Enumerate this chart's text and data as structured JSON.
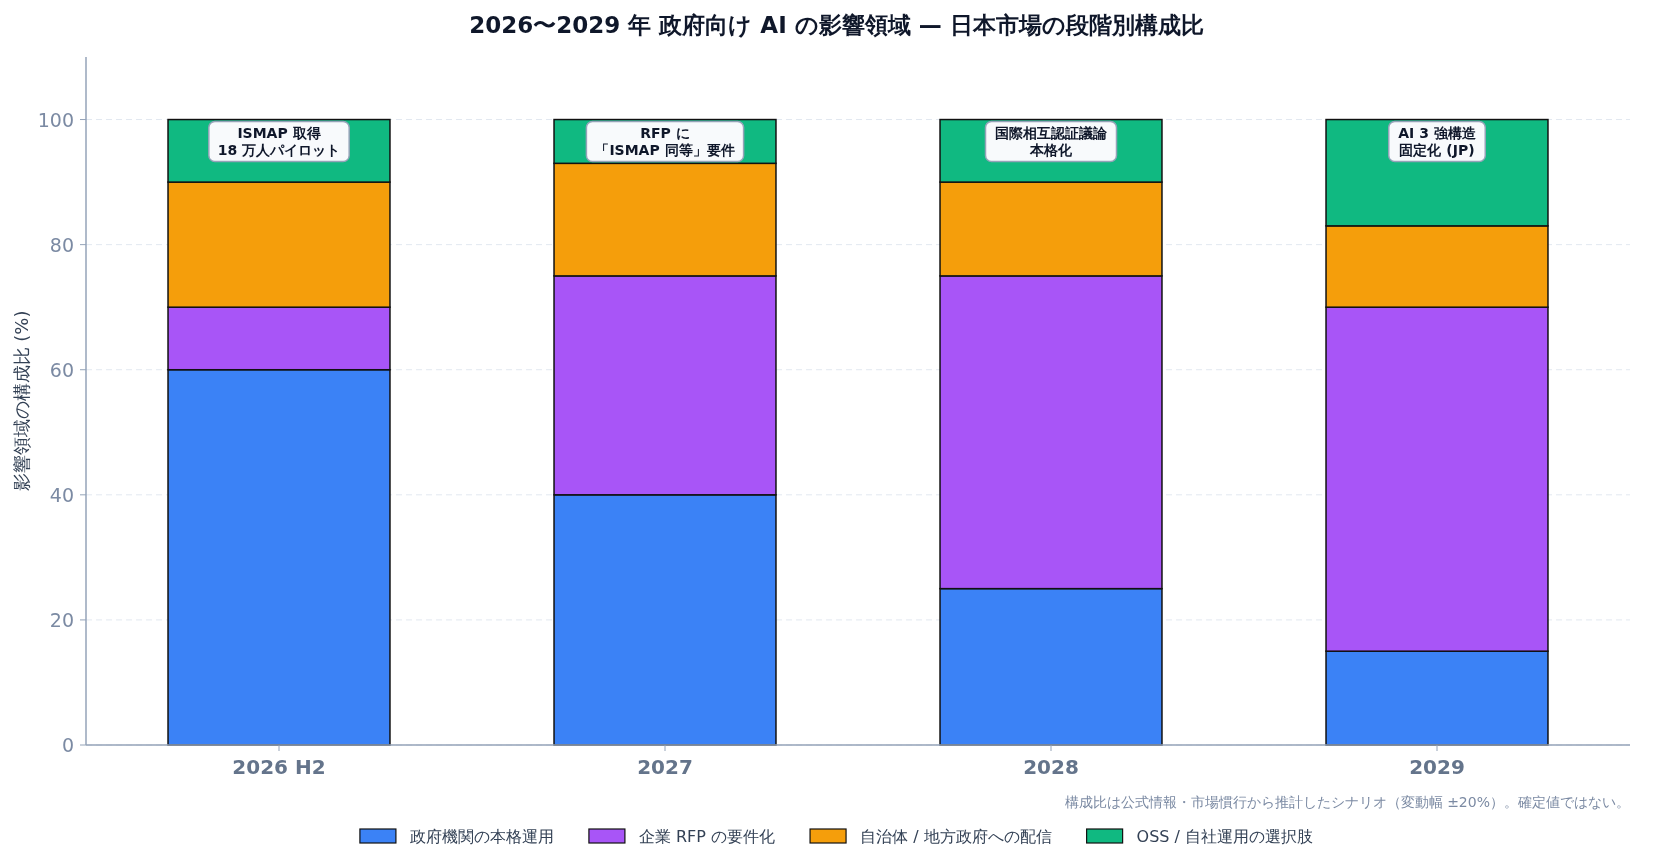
{
  "chart_data": {
    "type": "bar",
    "stacked": true,
    "title": "2026〜2029 年 政府向け AI の影響領域 — 日本市場の段階別構成比",
    "ylabel": "影響領域の構成比 (%)",
    "categories": [
      "2026 H2",
      "2027",
      "2028",
      "2029"
    ],
    "series": [
      {
        "name": "政府機関の本格運用",
        "color": "#3b82f6",
        "values": [
          60,
          40,
          25,
          15
        ]
      },
      {
        "name": "企業 RFP の要件化",
        "color": "#a855f7",
        "values": [
          10,
          35,
          50,
          55
        ]
      },
      {
        "name": "自治体 / 地方政府への配信",
        "color": "#f59e0b",
        "values": [
          20,
          18,
          15,
          13
        ]
      },
      {
        "name": "OSS / 自社運用の選択肢",
        "color": "#10b981",
        "values": [
          10,
          7,
          10,
          17
        ]
      }
    ],
    "ylim": [
      0,
      110
    ],
    "yticks": [
      0,
      20,
      40,
      60,
      80,
      100
    ],
    "grid": "y",
    "legend": "bottom",
    "annotations": [
      "ISMAP 取得",
      "18 万人パイロット",
      "RFP に",
      "「ISMAP 同等」要件",
      "国際相互認証議論",
      "本格化",
      "AI 3 強構造",
      "固定化 (JP)",
      "構成比は公式情報・市場慣行から推計したシナリオ（変動幅 ±20%）。確定値ではない。"
    ]
  }
}
